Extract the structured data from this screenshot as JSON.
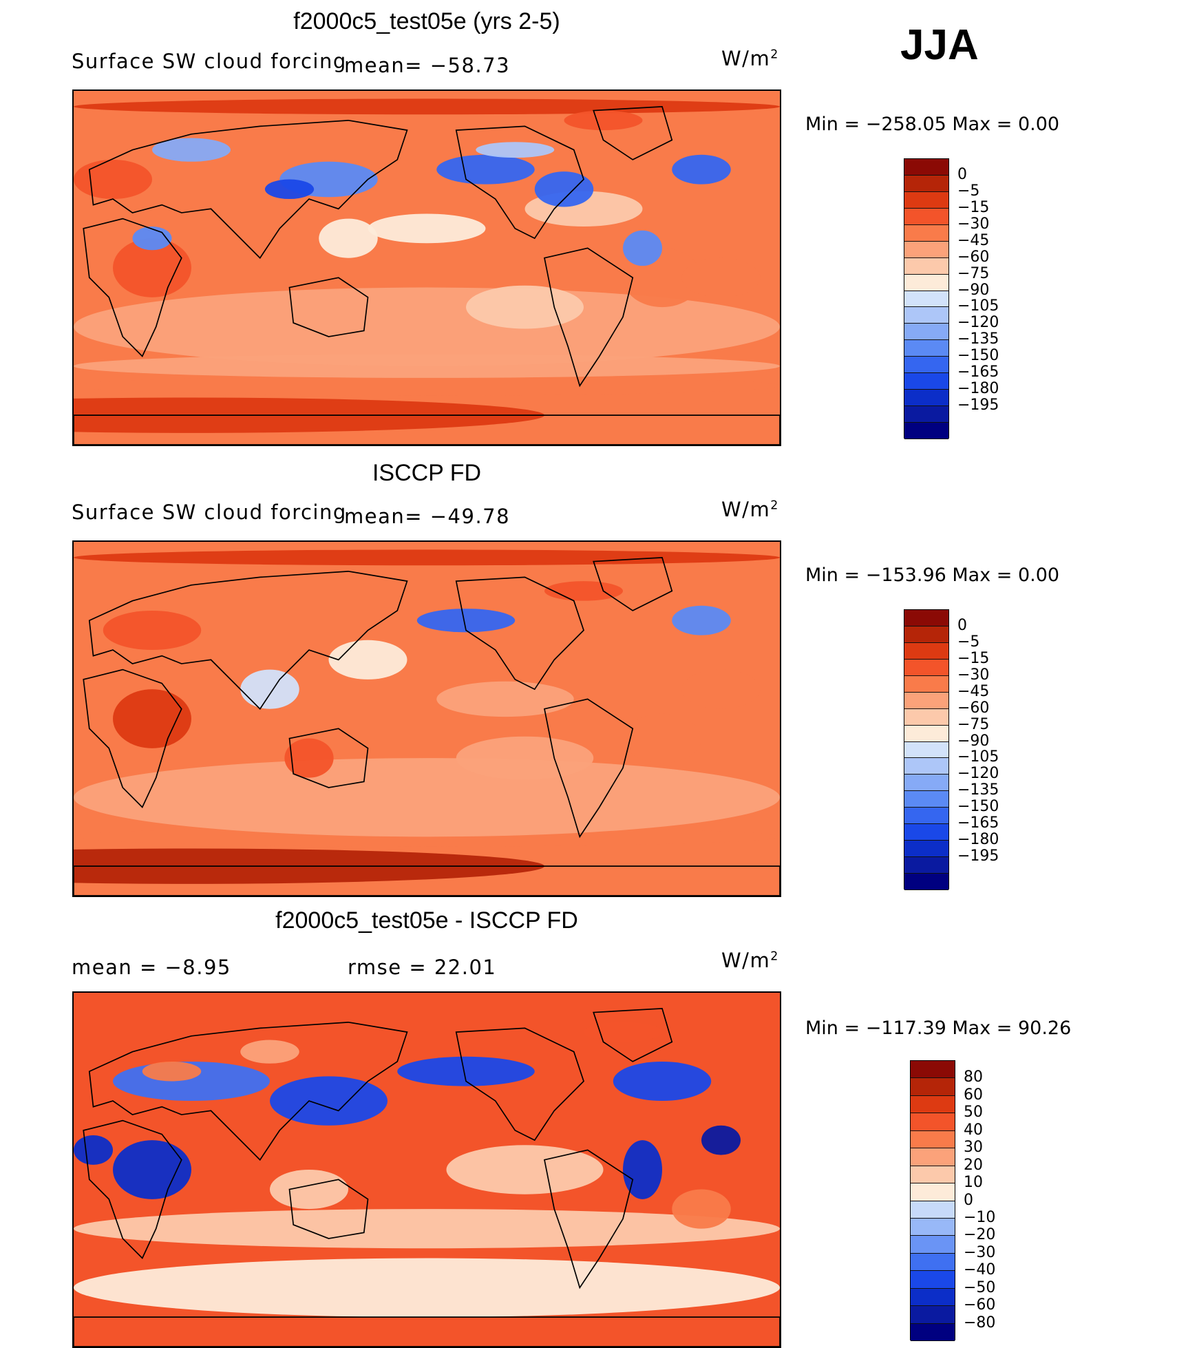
{
  "season": "JJA",
  "colors": {
    "forcing_scale": [
      "#000080",
      "#0a1aa0",
      "#0c2ec8",
      "#1a48e8",
      "#3566f0",
      "#5b8af4",
      "#86aaf6",
      "#adc6f8",
      "#d2e2fa",
      "#fdebd9",
      "#fcc9ab",
      "#fba27a",
      "#f97b4a",
      "#f3542a",
      "#dd3a12",
      "#b52508",
      "#8b0a05"
    ],
    "diff_scale": [
      "#000080",
      "#0a1aa0",
      "#0c2ec8",
      "#1a48e8",
      "#3f70f1",
      "#6a94f5",
      "#98b8f7",
      "#c7daf9",
      "#fdebd9",
      "#fcc9ab",
      "#fba27a",
      "#f97b4a",
      "#f3542a",
      "#dd3a12",
      "#b52508",
      "#8b0a05"
    ]
  },
  "panels": [
    {
      "title": "f2000c5_test05e (yrs 2-5)",
      "left_label": "Surface SW cloud forcing",
      "mean_text": "mean= −58.73",
      "units_base": "W/m",
      "units_exp": "2",
      "stats_text": "Min  =  −258.05  Max  =      0.00",
      "colorbar_labels": [
        "0",
        "−5",
        "−15",
        "−30",
        "−45",
        "−60",
        "−75",
        "−90",
        "−105",
        "−120",
        "−135",
        "−150",
        "−165",
        "−180",
        "−195"
      ],
      "field_bias": 0.0
    },
    {
      "title": "ISCCP FD",
      "left_label": "Surface SW cloud forcing",
      "mean_text": "mean= −49.78",
      "units_base": "W/m",
      "units_exp": "2",
      "stats_text": "Min  =  −153.96  Max  =      0.00",
      "colorbar_labels": [
        "0",
        "−5",
        "−15",
        "−30",
        "−45",
        "−60",
        "−75",
        "−90",
        "−105",
        "−120",
        "−135",
        "−150",
        "−165",
        "−180",
        "−195"
      ],
      "field_bias": 0.15
    },
    {
      "title": "f2000c5_test05e - ISCCP FD",
      "left_label": "mean  =    −8.95",
      "mean_text": "rmse  =    22.01",
      "units_base": "W/m",
      "units_exp": "2",
      "stats_text": "Min  =  −117.39  Max  =    90.26",
      "colorbar_labels": [
        "80",
        "60",
        "50",
        "40",
        "30",
        "20",
        "10",
        "0",
        "−10",
        "−20",
        "−30",
        "−40",
        "−50",
        "−60",
        "−80"
      ],
      "field_bias": 0.0
    }
  ]
}
